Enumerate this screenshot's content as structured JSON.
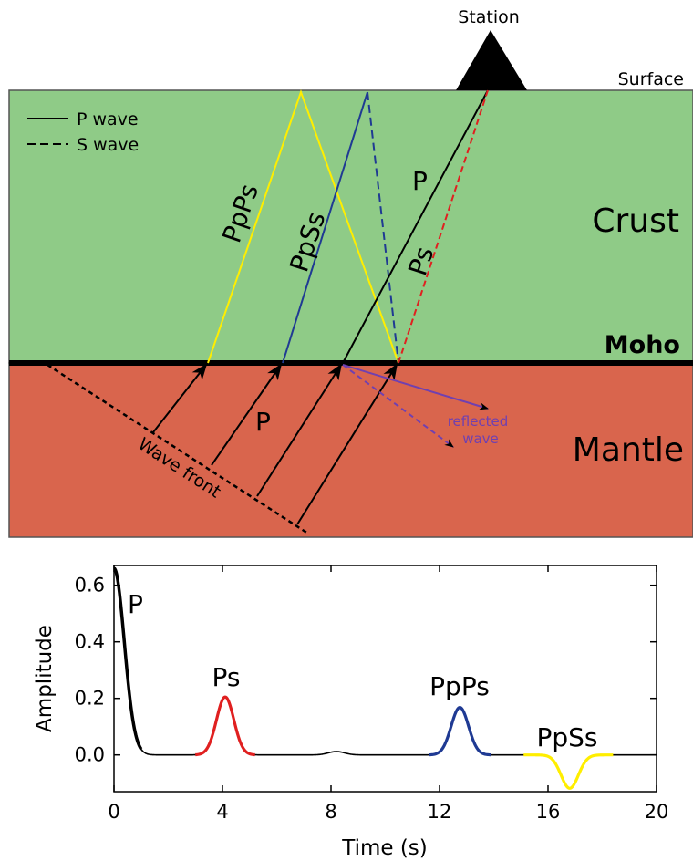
{
  "diagram": {
    "station_label": "Station",
    "surface_label": "Surface",
    "crust_label": "Crust",
    "moho_label": "Moho",
    "mantle_label": "Mantle",
    "legend": {
      "p_wave": "P wave",
      "s_wave": "S wave"
    },
    "ray_labels": {
      "ppps": "PpPs",
      "ppss": "PpSs",
      "p_crust": "P",
      "ps": "Ps",
      "p_mantle": "P"
    },
    "wave_front_label": "Wave front",
    "reflected_label_line1": "reflected",
    "reflected_label_line2": "wave",
    "colors": {
      "crust": "#8fcb87",
      "mantle": "#d9654d",
      "ppps": "#ffee00",
      "ppss": "#1f3a93",
      "ps": "#e02020",
      "reflected": "#7040b0"
    }
  },
  "chart_data": {
    "type": "line",
    "xlabel": "Time (s)",
    "ylabel": "Amplitude",
    "xlim": [
      0,
      20
    ],
    "ylim": [
      -0.13,
      0.67
    ],
    "xticks": [
      0,
      4,
      8,
      12,
      16,
      20
    ],
    "yticks": [
      0.0,
      0.2,
      0.4,
      0.6
    ],
    "grid": false,
    "phases": [
      {
        "name": "P",
        "time": 0.0,
        "amplitude": 0.66,
        "color": "#000000"
      },
      {
        "name": "Ps",
        "time": 4.1,
        "amplitude": 0.205,
        "color": "#e02020"
      },
      {
        "name": "PpPs",
        "time": 12.75,
        "amplitude": 0.168,
        "color": "#1f3a93"
      },
      {
        "name": "PpSs",
        "time": 16.8,
        "amplitude": -0.118,
        "color": "#ffee00"
      }
    ],
    "minor_arrival": {
      "time": 8.2,
      "amplitude": 0.012
    },
    "phase_labels": {
      "p": "P",
      "ps": "Ps",
      "ppps": "PpPs",
      "ppss": "PpSs"
    }
  }
}
